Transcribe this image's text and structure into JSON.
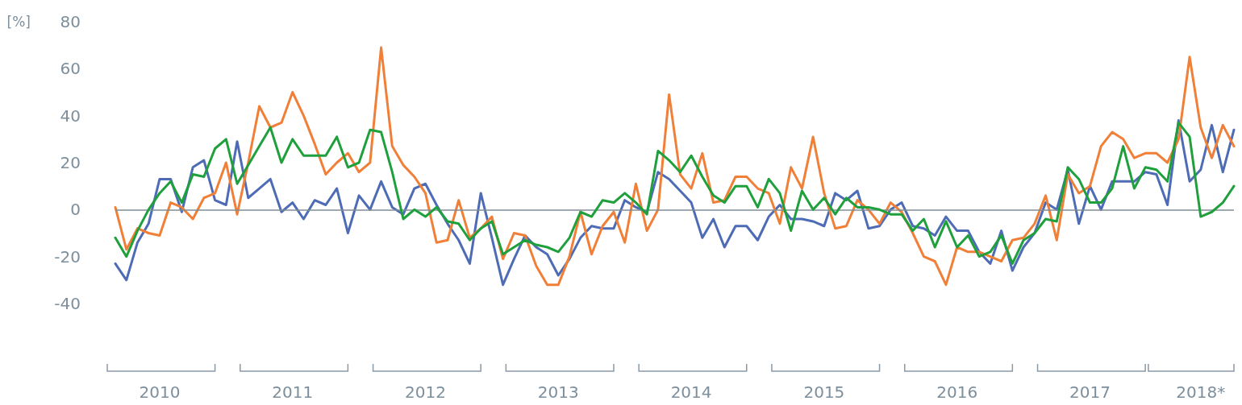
{
  "chart_data": {
    "type": "line",
    "ylabel": "[%]",
    "categories": [
      null,
      null,
      null,
      null,
      "2010",
      null,
      null,
      null,
      null,
      null,
      null,
      null,
      null,
      null,
      null,
      null,
      "2011",
      null,
      null,
      null,
      null,
      null,
      null,
      null,
      null,
      null,
      null,
      null,
      "2012",
      null,
      null,
      null,
      null,
      null,
      null,
      null,
      null,
      null,
      null,
      null,
      "2013",
      null,
      null,
      null,
      null,
      null,
      null,
      null,
      null,
      null,
      null,
      null,
      "2014",
      null,
      null,
      null,
      null,
      null,
      null,
      null,
      null,
      null,
      null,
      null,
      "2015",
      null,
      null,
      null,
      null,
      null,
      null,
      null,
      null,
      null,
      null,
      null,
      "2016",
      null,
      null,
      null,
      null,
      null,
      null,
      null,
      null,
      null,
      null,
      null,
      "2017",
      null,
      null,
      null,
      null,
      null,
      null,
      null,
      null,
      null,
      "2018*",
      null,
      null,
      null
    ],
    "series": [
      {
        "color": "#4e6cb5",
        "values": [
          -23,
          -30,
          -14,
          -6,
          13,
          13,
          -1,
          18,
          21,
          4,
          2,
          29,
          5,
          9,
          13,
          -1,
          3,
          -4,
          4,
          2,
          9,
          -10,
          6,
          0,
          12,
          1,
          -2,
          9,
          11,
          2,
          -6,
          -13,
          -23,
          7,
          -12,
          -32,
          -21,
          -11,
          -16,
          -19,
          -28,
          -21,
          -12,
          -7,
          -8,
          -8,
          4,
          1,
          -1,
          16,
          13,
          8,
          3,
          -12,
          -4,
          -16,
          -7,
          -7,
          -13,
          -3,
          2,
          -4,
          -4,
          -5,
          -7,
          7,
          4,
          8,
          -8,
          -7,
          0,
          3,
          -7,
          -8,
          -11,
          -3,
          -9,
          -9,
          -18,
          -23,
          -9,
          -26,
          -16,
          -10,
          3,
          0,
          17,
          -6,
          10,
          0,
          12,
          12,
          12,
          16,
          15,
          2,
          38,
          12,
          17,
          36,
          16,
          34
        ]
      },
      {
        "color": "#f07f38",
        "values": [
          1,
          -17,
          -8,
          -10,
          -11,
          3,
          1,
          -4,
          5,
          7,
          20,
          -2,
          20,
          44,
          35,
          37,
          50,
          40,
          28,
          15,
          20,
          24,
          16,
          20,
          69,
          27,
          19,
          14,
          7,
          -14,
          -13,
          4,
          -12,
          -8,
          -3,
          -21,
          -10,
          -11,
          -24,
          -32,
          -32,
          -20,
          -1,
          -19,
          -7,
          -1,
          -14,
          11,
          -9,
          0,
          49,
          15,
          9,
          24,
          3,
          4,
          14,
          14,
          9,
          7,
          -6,
          18,
          9,
          31,
          7,
          -8,
          -7,
          4,
          0,
          -6,
          3,
          -1,
          -10,
          -20,
          -22,
          -32,
          -16,
          -18,
          -18,
          -20,
          -22,
          -13,
          -12,
          -6,
          6,
          -13,
          15,
          7,
          10,
          27,
          33,
          30,
          22,
          24,
          24,
          20,
          30,
          65,
          35,
          22,
          36,
          27
        ]
      },
      {
        "color": "#1fa03c",
        "values": [
          -12,
          -20,
          -9,
          0,
          7,
          12,
          3,
          15,
          14,
          26,
          30,
          11,
          19,
          27,
          35,
          20,
          30,
          23,
          23,
          23,
          31,
          18,
          20,
          34,
          33,
          16,
          -4,
          0,
          -3,
          1,
          -5,
          -6,
          -13,
          -8,
          -5,
          -19,
          -16,
          -13,
          -15,
          -16,
          -18,
          -12,
          -1,
          -3,
          4,
          3,
          7,
          3,
          -2,
          25,
          21,
          16,
          23,
          14,
          6,
          3,
          10,
          10,
          1,
          13,
          7,
          -9,
          8,
          0,
          5,
          -2,
          5,
          1,
          1,
          0,
          -2,
          -2,
          -9,
          -4,
          -16,
          -5,
          -16,
          -11,
          -20,
          -18,
          -11,
          -23,
          -13,
          -10,
          -4,
          -5,
          18,
          13,
          3,
          3,
          9,
          27,
          9,
          18,
          17,
          12,
          37,
          31,
          -3,
          -1,
          3,
          10
        ]
      }
    ],
    "ylim": [
      -40,
      80
    ],
    "yticks": [
      -40,
      -20,
      0,
      20,
      40,
      60,
      80
    ],
    "ref_lines": [
      {
        "axis": "y",
        "value": 0,
        "color": "#7f8c95"
      }
    ],
    "grid": false,
    "marker": "none",
    "line_style": "solid"
  }
}
